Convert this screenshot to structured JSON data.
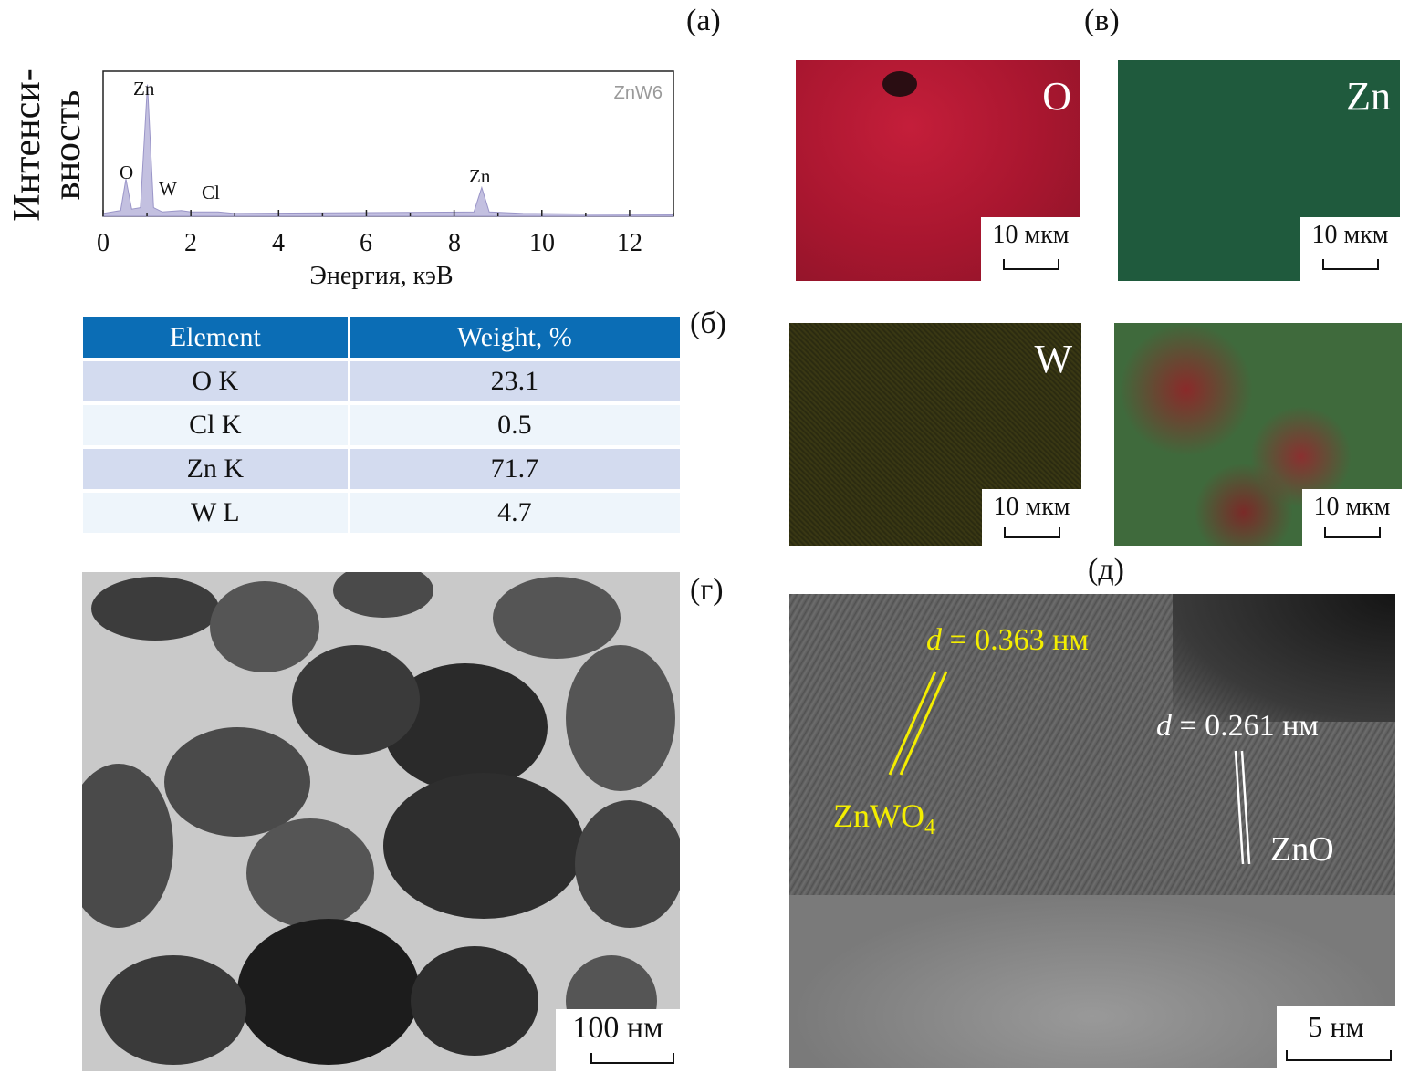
{
  "panel_labels": {
    "a": "(а)",
    "b": "(б)",
    "v": "(в)",
    "g": "(г)",
    "d": "(д)"
  },
  "spectrum": {
    "ylabel_line1": "Интенси-",
    "ylabel_line2": "вность",
    "xlabel": "Энергия, кэВ",
    "sample": "ZnW6",
    "x_ticks": [
      "0",
      "2",
      "4",
      "6",
      "8",
      "10",
      "12"
    ],
    "peak_labels": [
      "O",
      "Zn",
      "W",
      "Cl",
      "Zn"
    ]
  },
  "chart_data": {
    "type": "area",
    "xlabel": "Энергия, кэВ",
    "xlim": [
      0,
      13
    ],
    "ylim": [
      0,
      1
    ],
    "x": [
      0,
      0.4,
      0.52,
      0.65,
      0.85,
      1.01,
      1.15,
      1.35,
      1.78,
      2.0,
      2.62,
      3.0,
      8.45,
      8.63,
      8.8,
      9.57,
      13
    ],
    "y": [
      0.02,
      0.04,
      0.26,
      0.05,
      0.06,
      0.92,
      0.06,
      0.03,
      0.04,
      0.03,
      0.03,
      0.02,
      0.03,
      0.2,
      0.03,
      0.02,
      0.01
    ],
    "peaks": [
      {
        "label": "O",
        "x": 0.52,
        "y": 0.26
      },
      {
        "label": "Zn",
        "x": 1.01,
        "y": 0.92
      },
      {
        "label": "W",
        "x": 1.78,
        "y": 0.04
      },
      {
        "label": "Cl",
        "x": 2.62,
        "y": 0.03
      },
      {
        "label": "Zn",
        "x": 8.63,
        "y": 0.2
      }
    ]
  },
  "table": {
    "headers": [
      "Element",
      "Weight, %"
    ],
    "rows": [
      [
        "O K",
        "23.1"
      ],
      [
        "Cl K",
        "0.5"
      ],
      [
        "Zn K",
        "71.7"
      ],
      [
        "W L",
        "4.7"
      ]
    ]
  },
  "maps": [
    {
      "element": "O",
      "scale": "10 мкм",
      "color": "#b0182f"
    },
    {
      "element": "Zn",
      "scale": "10 мкм",
      "color": "#1f5a3d"
    },
    {
      "element": "W",
      "scale": "10 мкм",
      "color": "#2c2c12"
    },
    {
      "element": "",
      "scale": "10 мкм",
      "color": "#3a5a30"
    }
  ],
  "tem": {
    "scale": "100 нм"
  },
  "hrtem": {
    "d1_italic": "d",
    "d1_value": " = 0.363 нм",
    "d2_italic": "d",
    "d2_value": " = 0.261 нм",
    "phase1": "ZnWO",
    "phase1_sub": "4",
    "phase2": "ZnO",
    "scale": "5 нм",
    "highlight_color": "#f4ee00"
  }
}
